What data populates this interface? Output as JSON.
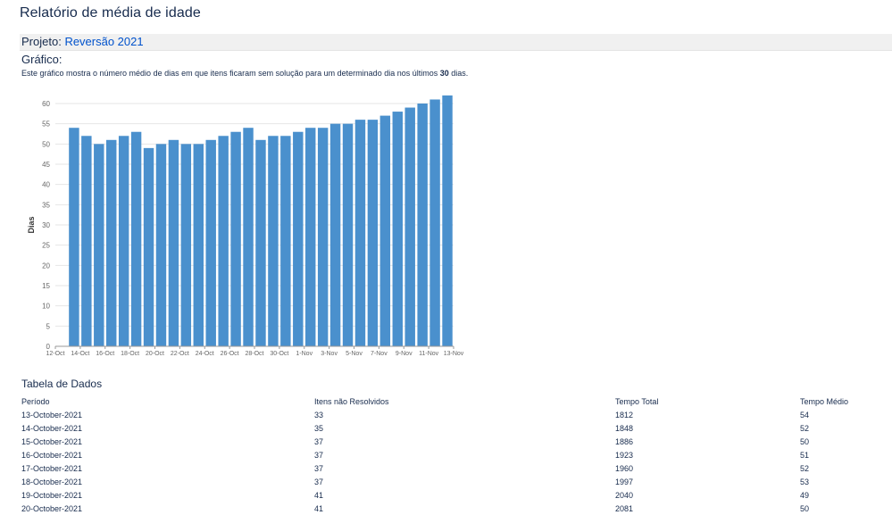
{
  "page_title": "Relatório de média de idade",
  "project": {
    "label": "Projeto:",
    "name": "Reversão 2021"
  },
  "chart_heading": "Gráfico:",
  "description": {
    "before": "Este gráfico mostra o número médio de dias em que itens ficaram sem solução para um determinado dia nos últimos ",
    "days": "30",
    "after": " dias."
  },
  "chart_data": {
    "type": "bar",
    "ylabel": "Dias",
    "xlabel": "",
    "ylim": [
      0,
      60
    ],
    "yticks": [
      0,
      5,
      10,
      15,
      20,
      25,
      30,
      35,
      40,
      45,
      50,
      55,
      60
    ],
    "grid": true,
    "color": "#4a90cd",
    "categories": [
      "13-Oct",
      "14-Oct",
      "15-Oct",
      "16-Oct",
      "17-Oct",
      "18-Oct",
      "19-Oct",
      "20-Oct",
      "21-Oct",
      "22-Oct",
      "23-Oct",
      "24-Oct",
      "25-Oct",
      "26-Oct",
      "27-Oct",
      "28-Oct",
      "29-Oct",
      "30-Oct",
      "31-Oct",
      "1-Nov",
      "2-Nov",
      "3-Nov",
      "4-Nov",
      "5-Nov",
      "6-Nov",
      "7-Nov",
      "8-Nov",
      "9-Nov",
      "10-Nov",
      "11-Nov",
      "12-Nov"
    ],
    "values": [
      54,
      52,
      50,
      51,
      52,
      53,
      49,
      50,
      51,
      50,
      50,
      51,
      52,
      53,
      54,
      51,
      52,
      52,
      53,
      54,
      54,
      55,
      55,
      56,
      56,
      57,
      58,
      59,
      60,
      61,
      62
    ],
    "xticks": [
      "12-Oct",
      "14-Oct",
      "16-Oct",
      "18-Oct",
      "20-Oct",
      "22-Oct",
      "24-Oct",
      "26-Oct",
      "28-Oct",
      "30-Oct",
      "1-Nov",
      "3-Nov",
      "5-Nov",
      "7-Nov",
      "9-Nov",
      "11-Nov",
      "13-Nov"
    ]
  },
  "table": {
    "title": "Tabela de Dados",
    "headers": {
      "period": "Período",
      "unresolved": "Itens não Resolvidos",
      "total": "Tempo Total",
      "average": "Tempo Médio"
    },
    "rows": [
      {
        "period": "13-October-2021",
        "unresolved": "33",
        "total": "1812",
        "average": "54"
      },
      {
        "period": "14-October-2021",
        "unresolved": "35",
        "total": "1848",
        "average": "52"
      },
      {
        "period": "15-October-2021",
        "unresolved": "37",
        "total": "1886",
        "average": "50"
      },
      {
        "period": "16-October-2021",
        "unresolved": "37",
        "total": "1923",
        "average": "51"
      },
      {
        "period": "17-October-2021",
        "unresolved": "37",
        "total": "1960",
        "average": "52"
      },
      {
        "period": "18-October-2021",
        "unresolved": "37",
        "total": "1997",
        "average": "53"
      },
      {
        "period": "19-October-2021",
        "unresolved": "41",
        "total": "2040",
        "average": "49"
      },
      {
        "period": "20-October-2021",
        "unresolved": "41",
        "total": "2081",
        "average": "50"
      }
    ]
  }
}
